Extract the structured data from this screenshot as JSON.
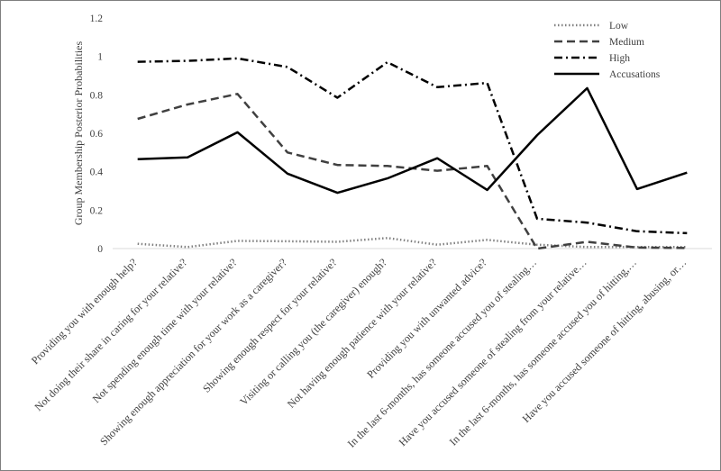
{
  "chart_data": {
    "type": "line",
    "ylabel": "Group Membership Posterior Probabilities",
    "ylim": [
      0,
      1.2
    ],
    "yticks": [
      "0",
      "0.2",
      "0.4",
      "0.6",
      "0.8",
      "1",
      "1.2"
    ],
    "grid": false,
    "legend_position": "top-right",
    "categories": [
      "Providing you with enough help?",
      "Not doing their share in caring for your relative?",
      "Not spending enough time with your relative?",
      "Showing enough appreciation for your work as a caregiver?",
      "Showing enough respect for your relative?",
      "Visiting or calling you (the caregiver) enough?",
      "Not having enough patience with your relative?",
      "Providing you with unwanted advice?",
      "In the last 6-months, has someone accused you of stealing…",
      "Have you accused someone of stealing from your relative…",
      "In the last 6-months, has someone accused you of hitting,…",
      "Have you accused someone of hitting, abusing, or…"
    ],
    "series": [
      {
        "name": "Low",
        "style": "dotted",
        "color": "#808080",
        "values": [
          0.025,
          0.008,
          0.04,
          0.038,
          0.035,
          0.055,
          0.02,
          0.045,
          0.02,
          0.008,
          0.008,
          0.008
        ]
      },
      {
        "name": "Medium",
        "style": "dashed",
        "color": "#404040",
        "values": [
          0.675,
          0.75,
          0.805,
          0.5,
          0.435,
          0.43,
          0.405,
          0.43,
          0.0,
          0.035,
          0.005,
          0.003
        ]
      },
      {
        "name": "High",
        "style": "dashdot",
        "color": "#000000",
        "values": [
          0.972,
          0.977,
          0.99,
          0.945,
          0.785,
          0.97,
          0.84,
          0.862,
          0.155,
          0.135,
          0.09,
          0.08
        ]
      },
      {
        "name": "Accusations",
        "style": "solid",
        "color": "#000000",
        "values": [
          0.465,
          0.475,
          0.605,
          0.39,
          0.29,
          0.365,
          0.47,
          0.305,
          0.59,
          0.835,
          0.31,
          0.395
        ]
      }
    ]
  }
}
